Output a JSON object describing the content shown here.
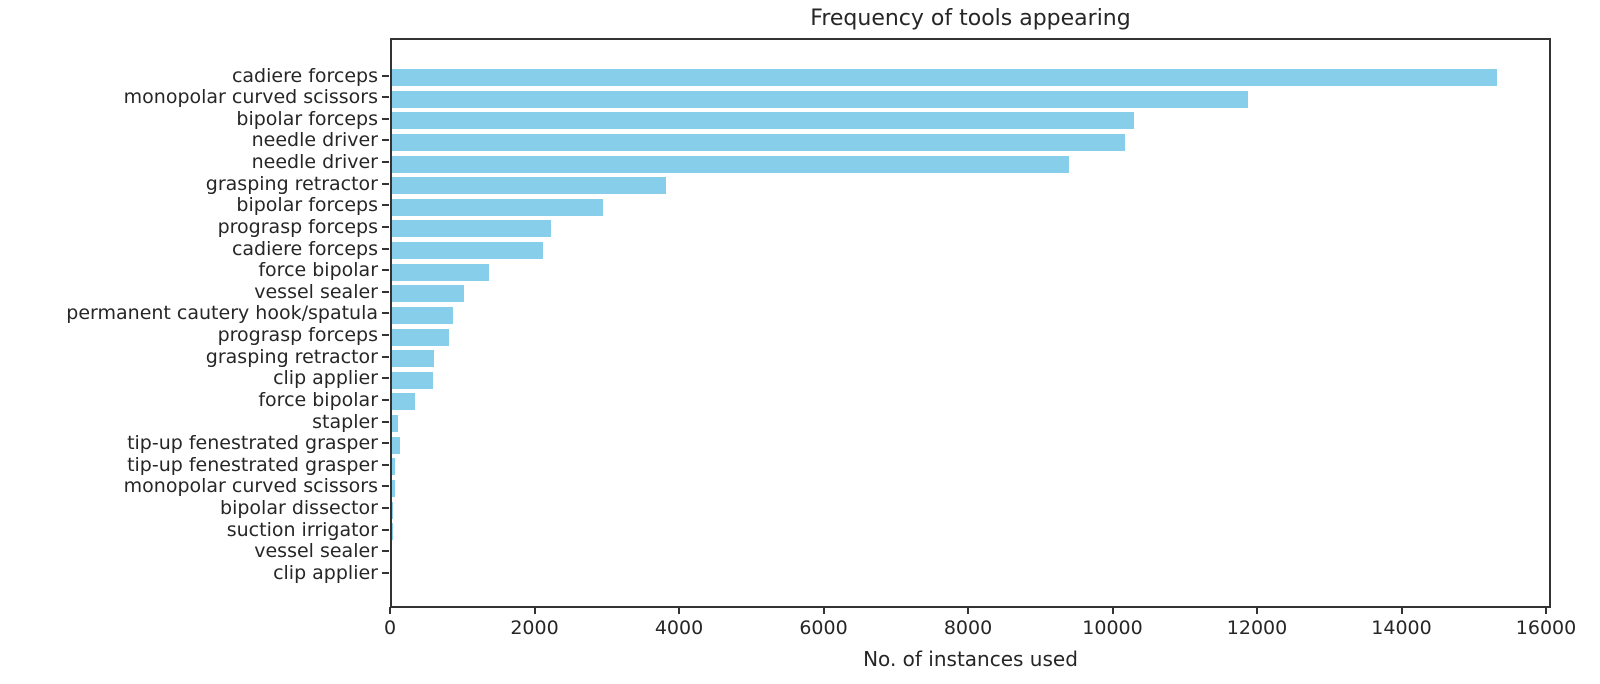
{
  "chart_data": {
    "type": "bar",
    "orientation": "horizontal",
    "title": "Frequency of tools appearing",
    "xlabel": "No. of instances used",
    "ylabel": "",
    "xlim": [
      0,
      16000
    ],
    "x_ticks": [
      0,
      2000,
      4000,
      6000,
      8000,
      10000,
      12000,
      14000,
      16000
    ],
    "grid": false,
    "legend": "none",
    "bar_color": "#87CEEB",
    "categories": [
      "cadiere forceps",
      "monopolar curved scissors",
      "bipolar forceps",
      "needle driver",
      "needle driver",
      "grasping retractor",
      "bipolar forceps",
      "prograsp forceps",
      "cadiere forceps",
      "force bipolar",
      "vessel sealer",
      "permanent cautery hook/spatula",
      "prograsp forceps",
      "grasping retractor",
      "clip applier",
      "force bipolar",
      "stapler",
      "tip-up fenestrated grasper",
      "tip-up fenestrated grasper",
      "monopolar curved scissors",
      "bipolar dissector",
      "suction irrigator",
      "vessel sealer",
      "clip applier"
    ],
    "values": [
      15300,
      11850,
      10270,
      10150,
      9370,
      3790,
      2920,
      2200,
      2090,
      1340,
      990,
      840,
      790,
      585,
      565,
      320,
      80,
      105,
      40,
      40,
      10,
      10,
      5,
      5
    ]
  }
}
